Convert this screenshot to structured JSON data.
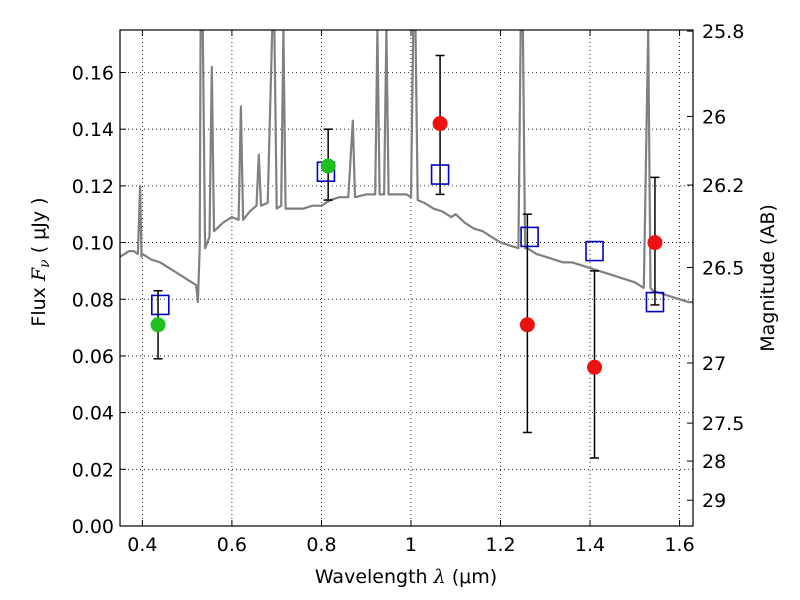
{
  "chart_data": {
    "type": "scatter",
    "xlabel": {
      "prefix": "Wavelength  ",
      "symbol": "λ",
      "unit": " (μm)"
    },
    "ylabel": {
      "prefix": "Flux  ",
      "symbol": "F",
      "subscript": "ν",
      "unit": "  ( μJy )"
    },
    "y2label": "Magnitude (AB)",
    "xlim": [
      0.35,
      1.63
    ],
    "ylim": [
      0.0,
      0.175
    ],
    "grid": true,
    "x_ticks": [
      0.4,
      0.6,
      0.8,
      1.0,
      1.2,
      1.4,
      1.6
    ],
    "x_tick_labels": [
      "0.4",
      "0.6",
      "0.8",
      "1",
      "1.2",
      "1.4",
      "1.6"
    ],
    "y_ticks": [
      0.0,
      0.02,
      0.04,
      0.06,
      0.08,
      0.1,
      0.12,
      0.14,
      0.16
    ],
    "y_tick_labels": [
      "0.00",
      "0.02",
      "0.04",
      "0.06",
      "0.08",
      "0.10",
      "0.12",
      "0.14",
      "0.16"
    ],
    "magnitude_ticks": [
      {
        "label": "25.8",
        "flux": 0.1746
      },
      {
        "label": "26",
        "flux": 0.1445
      },
      {
        "label": "26.2",
        "flux": 0.1203
      },
      {
        "label": "26.5",
        "flux": 0.0912
      },
      {
        "label": "27",
        "flux": 0.0575
      },
      {
        "label": "27.5",
        "flux": 0.0363
      },
      {
        "label": "28",
        "flux": 0.0229
      },
      {
        "label": "29",
        "flux": 0.0091
      }
    ],
    "series": [
      {
        "kind": "model_spectrum",
        "color": "#808080",
        "points": [
          [
            0.35,
            0.095
          ],
          [
            0.36,
            0.096
          ],
          [
            0.37,
            0.097
          ],
          [
            0.38,
            0.097
          ],
          [
            0.39,
            0.096
          ],
          [
            0.395,
            0.12
          ],
          [
            0.398,
            0.095
          ],
          [
            0.4,
            0.096
          ],
          [
            0.42,
            0.094
          ],
          [
            0.44,
            0.093
          ],
          [
            0.46,
            0.091
          ],
          [
            0.48,
            0.089
          ],
          [
            0.5,
            0.087
          ],
          [
            0.52,
            0.085
          ],
          [
            0.524,
            0.079
          ],
          [
            0.528,
            0.098
          ],
          [
            0.53,
            0.175
          ],
          [
            0.535,
            0.175
          ],
          [
            0.54,
            0.098
          ],
          [
            0.55,
            0.102
          ],
          [
            0.555,
            0.162
          ],
          [
            0.56,
            0.104
          ],
          [
            0.58,
            0.107
          ],
          [
            0.6,
            0.109
          ],
          [
            0.615,
            0.108
          ],
          [
            0.62,
            0.148
          ],
          [
            0.625,
            0.108
          ],
          [
            0.64,
            0.111
          ],
          [
            0.655,
            0.113
          ],
          [
            0.66,
            0.131
          ],
          [
            0.665,
            0.113
          ],
          [
            0.68,
            0.114
          ],
          [
            0.69,
            0.175
          ],
          [
            0.695,
            0.175
          ],
          [
            0.7,
            0.112
          ],
          [
            0.71,
            0.113
          ],
          [
            0.715,
            0.175
          ],
          [
            0.72,
            0.112
          ],
          [
            0.74,
            0.112
          ],
          [
            0.76,
            0.112
          ],
          [
            0.78,
            0.113
          ],
          [
            0.8,
            0.113
          ],
          [
            0.82,
            0.115
          ],
          [
            0.84,
            0.116
          ],
          [
            0.86,
            0.116
          ],
          [
            0.87,
            0.143
          ],
          [
            0.875,
            0.116
          ],
          [
            0.9,
            0.117
          ],
          [
            0.92,
            0.117
          ],
          [
            0.925,
            0.175
          ],
          [
            0.93,
            0.117
          ],
          [
            0.94,
            0.117
          ],
          [
            0.945,
            0.175
          ],
          [
            0.95,
            0.117
          ],
          [
            0.97,
            0.117
          ],
          [
            0.99,
            0.117
          ],
          [
            1.0,
            0.116
          ],
          [
            1.005,
            0.175
          ],
          [
            1.01,
            0.175
          ],
          [
            1.015,
            0.115
          ],
          [
            1.03,
            0.114
          ],
          [
            1.04,
            0.113
          ],
          [
            1.05,
            0.112
          ],
          [
            1.07,
            0.111
          ],
          [
            1.09,
            0.109
          ],
          [
            1.1,
            0.11
          ],
          [
            1.12,
            0.107
          ],
          [
            1.14,
            0.105
          ],
          [
            1.16,
            0.104
          ],
          [
            1.18,
            0.102
          ],
          [
            1.2,
            0.1
          ],
          [
            1.22,
            0.099
          ],
          [
            1.24,
            0.098
          ],
          [
            1.245,
            0.175
          ],
          [
            1.25,
            0.175
          ],
          [
            1.255,
            0.098
          ],
          [
            1.26,
            0.098
          ],
          [
            1.28,
            0.096
          ],
          [
            1.3,
            0.095
          ],
          [
            1.32,
            0.094
          ],
          [
            1.34,
            0.093
          ],
          [
            1.36,
            0.093
          ],
          [
            1.38,
            0.092
          ],
          [
            1.4,
            0.091
          ],
          [
            1.42,
            0.09
          ],
          [
            1.44,
            0.089
          ],
          [
            1.46,
            0.088
          ],
          [
            1.48,
            0.087
          ],
          [
            1.5,
            0.086
          ],
          [
            1.52,
            0.084
          ],
          [
            1.53,
            0.175
          ],
          [
            1.535,
            0.084
          ],
          [
            1.54,
            0.083
          ],
          [
            1.56,
            0.082
          ],
          [
            1.58,
            0.081
          ],
          [
            1.6,
            0.08
          ],
          [
            1.62,
            0.079
          ],
          [
            1.63,
            0.079
          ]
        ]
      },
      {
        "kind": "model_photometry",
        "marker": "open-square",
        "color": "#0000cc",
        "points": [
          [
            0.44,
            0.078
          ],
          [
            0.81,
            0.125
          ],
          [
            1.065,
            0.124
          ],
          [
            1.265,
            0.102
          ],
          [
            1.41,
            0.097
          ],
          [
            1.545,
            0.079
          ]
        ]
      },
      {
        "kind": "detections",
        "marker": "filled-circle",
        "color": "#1fbf1f",
        "points": [
          {
            "x": 0.435,
            "y": 0.071,
            "err_low": 0.059,
            "err_high": 0.083
          },
          {
            "x": 0.815,
            "y": 0.127,
            "err_low": 0.115,
            "err_high": 0.14
          }
        ]
      },
      {
        "kind": "measurements",
        "marker": "filled-circle",
        "color": "#ee1111",
        "points": [
          {
            "x": 1.065,
            "y": 0.142,
            "err_low": 0.117,
            "err_high": 0.166
          },
          {
            "x": 1.26,
            "y": 0.071,
            "err_low": 0.033,
            "err_high": 0.11
          },
          {
            "x": 1.41,
            "y": 0.056,
            "err_low": 0.024,
            "err_high": 0.09
          },
          {
            "x": 1.545,
            "y": 0.1,
            "err_low": 0.078,
            "err_high": 0.123
          }
        ]
      }
    ]
  }
}
